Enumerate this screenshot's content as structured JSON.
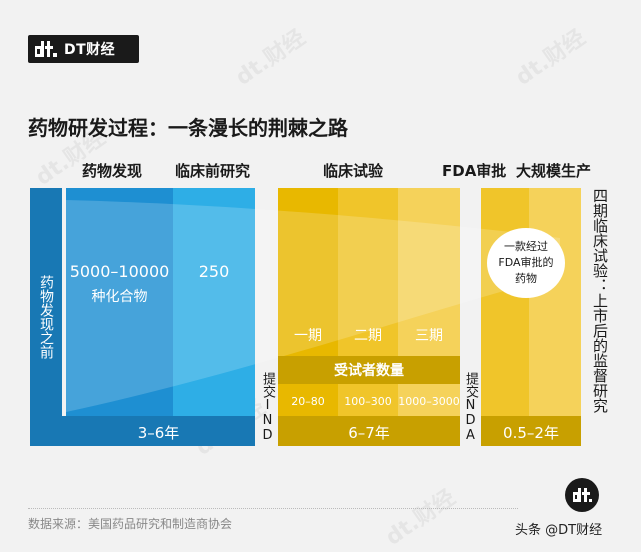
{
  "brand": {
    "logo_text": "DT财经",
    "watermark": "dt.财经"
  },
  "title": "药物研发过程：一条漫长的荆棘之路",
  "colors": {
    "blue_dark": "#1878b4",
    "blue_mid": "#1e8fd2",
    "blue_light": "#2eaee6",
    "yellow_dark": "#e8b800",
    "yellow_mid": "#f0c52a",
    "yellow_light": "#f5d25a",
    "yellow_band": "#c8a000"
  },
  "headers": {
    "discovery": "药物发现",
    "preclinical": "临床前研究",
    "clinical": "临床试验",
    "fda": "FDA审批",
    "production": "大规模生产"
  },
  "left_bar": "药物发现之前",
  "compounds": {
    "discovery_count": "5000–10000",
    "discovery_unit": "种化合物",
    "preclinical_count": "250"
  },
  "phases": [
    "一期",
    "二期",
    "三期"
  ],
  "subjects_label": "受试者数量",
  "subjects": [
    "20–80",
    "100–300",
    "1000–3000"
  ],
  "durations": {
    "discovery": "3–6年",
    "clinical": "6–7年",
    "fda": "0.5–2年"
  },
  "submissions": {
    "ind": "提交IND",
    "nda": "提交NDA"
  },
  "approved_label": "一款经过FDA审批的药物",
  "phase4": "四期临床试验：上市后的监督研究",
  "footer": {
    "source": "数据来源：美国药品研究和制造商协会",
    "credit": "头条 @DT财经"
  }
}
